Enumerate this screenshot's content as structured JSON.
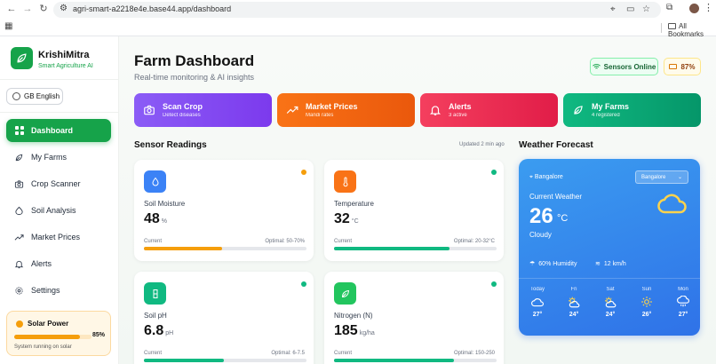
{
  "browser": {
    "url": "agri-smart-a2218e4e.base44.app/dashboard",
    "bookmarks_label": "All Bookmarks"
  },
  "sidebar": {
    "brand_name": "KrishiMitra",
    "brand_tagline": "Smart Agriculture AI",
    "language": "GB English",
    "items": [
      {
        "label": "Dashboard",
        "icon": "dashboard-icon",
        "active": true
      },
      {
        "label": "My Farms",
        "icon": "leaf-icon"
      },
      {
        "label": "Crop Scanner",
        "icon": "camera-icon"
      },
      {
        "label": "Soil Analysis",
        "icon": "soil-icon"
      },
      {
        "label": "Market Prices",
        "icon": "trend-icon"
      },
      {
        "label": "Alerts",
        "icon": "bell-icon"
      },
      {
        "label": "Settings",
        "icon": "gear-icon"
      }
    ],
    "solar": {
      "title": "Solar Power",
      "percent": "85%",
      "level": 0.85,
      "subtitle": "System running on solar"
    }
  },
  "header": {
    "title": "Farm Dashboard",
    "subtitle": "Real-time monitoring & AI insights",
    "sensors_status": "Sensors Online",
    "battery": "87%"
  },
  "quick_actions": [
    {
      "title": "Scan Crop",
      "subtitle": "Detect diseases",
      "icon": "camera-icon",
      "color_from": "#8b5cf6",
      "color_to": "#7c3aed"
    },
    {
      "title": "Market Prices",
      "subtitle": "Mandi rates",
      "icon": "trend-icon",
      "color_from": "#f97316",
      "color_to": "#ea580c"
    },
    {
      "title": "Alerts",
      "subtitle": "3 active",
      "icon": "bell-icon",
      "color_from": "#f43f5e",
      "color_to": "#e11d48"
    },
    {
      "title": "My Farms",
      "subtitle": "4 registered",
      "icon": "leaf-icon",
      "color_from": "#10b981",
      "color_to": "#059669"
    }
  ],
  "sensors": {
    "title": "Sensor Readings",
    "updated": "Updated 2 min ago",
    "current_label": "Current",
    "cards": [
      {
        "label": "Soil Moisture",
        "value": "48",
        "unit": "%",
        "optimal": "Optimal: 50-70%",
        "level": 0.48,
        "bar_color": "#f59e0b",
        "dot_color": "#f59e0b",
        "icon": "droplet-icon",
        "icon_bg": "#3b82f6"
      },
      {
        "label": "Temperature",
        "value": "32",
        "unit": "°C",
        "optimal": "Optimal: 20-32°C",
        "level": 0.71,
        "bar_color": "#10b981",
        "dot_color": "#10b981",
        "icon": "thermometer-icon",
        "icon_bg": "#f97316"
      },
      {
        "label": "Soil pH",
        "value": "6.8",
        "unit": "pH",
        "optimal": "Optimal: 6-7.5",
        "level": 0.49,
        "bar_color": "#10b981",
        "dot_color": "#10b981",
        "icon": "beaker-icon",
        "icon_bg": "#10b981"
      },
      {
        "label": "Nitrogen (N)",
        "value": "185",
        "unit": "kg/ha",
        "optimal": "Optimal: 150-250",
        "level": 0.74,
        "bar_color": "#10b981",
        "dot_color": "#10b981",
        "icon": "leaf-icon",
        "icon_bg": "#22c55e"
      }
    ]
  },
  "weather": {
    "title": "Weather Forecast",
    "location": "Bangalore",
    "select_value": "Bangalore",
    "current_label": "Current Weather",
    "temp": "26",
    "temp_unit": "°C",
    "condition": "Cloudy",
    "humidity": "60% Humidity",
    "wind": "12 km/h",
    "forecast": [
      {
        "day": "Today",
        "icon": "cloud-icon",
        "temp": "27°"
      },
      {
        "day": "Fri",
        "icon": "partly-sunny-icon",
        "temp": "24°"
      },
      {
        "day": "Sat",
        "icon": "partly-sunny-icon",
        "temp": "24°"
      },
      {
        "day": "Sun",
        "icon": "sun-icon",
        "temp": "26°"
      },
      {
        "day": "Mon",
        "icon": "rain-icon",
        "temp": "27°"
      }
    ]
  }
}
